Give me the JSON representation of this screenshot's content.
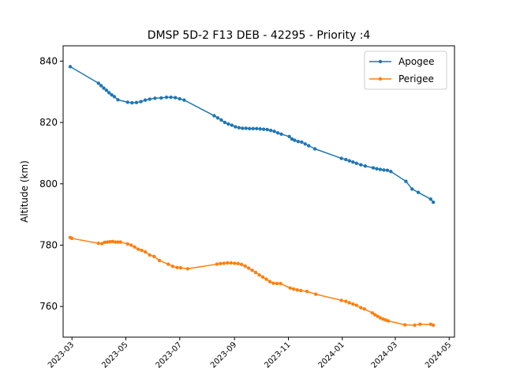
{
  "chart_data": {
    "type": "line",
    "title": "DMSP 5D-2 F13 DEB - 42295 - Priority :4",
    "xlabel": "",
    "ylabel": "Altitude (km)",
    "x_type": "date",
    "xlim": [
      "2023-02-19",
      "2024-05-07"
    ],
    "ylim": [
      750,
      845
    ],
    "xticks": [
      "2023-03",
      "2023-05",
      "2023-07",
      "2023-09",
      "2023-11",
      "2024-01",
      "2024-03",
      "2024-05"
    ],
    "yticks": [
      760,
      780,
      800,
      820,
      840
    ],
    "legend": {
      "position": "upper right"
    },
    "grid": false,
    "series": [
      {
        "name": "Apogee",
        "color": "#1f77b4",
        "marker": "circle",
        "points": [
          [
            "2023-02-27",
            838.2
          ],
          [
            "2023-03-31",
            832.8
          ],
          [
            "2023-04-03",
            832.0
          ],
          [
            "2023-04-06",
            831.2
          ],
          [
            "2023-04-09",
            830.5
          ],
          [
            "2023-04-12",
            829.7
          ],
          [
            "2023-04-15",
            829.0
          ],
          [
            "2023-04-18",
            828.4
          ],
          [
            "2023-04-22",
            827.4
          ],
          [
            "2023-05-03",
            826.6
          ],
          [
            "2023-05-08",
            826.4
          ],
          [
            "2023-05-13",
            826.5
          ],
          [
            "2023-05-18",
            826.8
          ],
          [
            "2023-05-23",
            827.3
          ],
          [
            "2023-05-28",
            827.6
          ],
          [
            "2023-06-03",
            827.9
          ],
          [
            "2023-06-10",
            828.0
          ],
          [
            "2023-06-16",
            828.2
          ],
          [
            "2023-06-21",
            828.2
          ],
          [
            "2023-06-26",
            828.1
          ],
          [
            "2023-07-01",
            827.7
          ],
          [
            "2023-07-06",
            827.3
          ],
          [
            "2023-08-09",
            822.2
          ],
          [
            "2023-08-13",
            821.5
          ],
          [
            "2023-08-17",
            820.8
          ],
          [
            "2023-08-21",
            820.0
          ],
          [
            "2023-08-25",
            819.5
          ],
          [
            "2023-08-29",
            819.1
          ],
          [
            "2023-09-02",
            818.6
          ],
          [
            "2023-09-06",
            818.3
          ],
          [
            "2023-09-10",
            818.1
          ],
          [
            "2023-09-14",
            818.1
          ],
          [
            "2023-09-18",
            818.0
          ],
          [
            "2023-09-22",
            818.0
          ],
          [
            "2023-09-26",
            818.0
          ],
          [
            "2023-09-30",
            817.9
          ],
          [
            "2023-10-04",
            817.8
          ],
          [
            "2023-10-08",
            817.7
          ],
          [
            "2023-10-12",
            817.4
          ],
          [
            "2023-10-16",
            817.1
          ],
          [
            "2023-10-20",
            816.6
          ],
          [
            "2023-10-24",
            816.2
          ],
          [
            "2023-11-02",
            815.4
          ],
          [
            "2023-11-05",
            814.6
          ],
          [
            "2023-11-08",
            814.2
          ],
          [
            "2023-11-12",
            813.8
          ],
          [
            "2023-11-16",
            813.6
          ],
          [
            "2023-11-20",
            813.0
          ],
          [
            "2023-11-24",
            812.4
          ],
          [
            "2023-12-01",
            811.4
          ],
          [
            "2023-12-31",
            808.3
          ],
          [
            "2024-01-05",
            807.9
          ],
          [
            "2024-01-09",
            807.5
          ],
          [
            "2024-01-13",
            807.1
          ],
          [
            "2024-01-17",
            806.7
          ],
          [
            "2024-01-22",
            806.2
          ],
          [
            "2024-01-27",
            805.8
          ],
          [
            "2024-02-05",
            805.2
          ],
          [
            "2024-02-09",
            804.9
          ],
          [
            "2024-02-13",
            804.7
          ],
          [
            "2024-02-17",
            804.5
          ],
          [
            "2024-02-21",
            804.4
          ],
          [
            "2024-02-25",
            804.0
          ],
          [
            "2024-03-13",
            800.8
          ],
          [
            "2024-03-20",
            798.3
          ],
          [
            "2024-03-27",
            797.2
          ],
          [
            "2024-04-10",
            795.0
          ],
          [
            "2024-04-13",
            794.0
          ]
        ]
      },
      {
        "name": "Perigee",
        "color": "#ff7f0e",
        "marker": "circle",
        "points": [
          [
            "2023-02-27",
            782.5
          ],
          [
            "2023-03-01",
            782.2
          ],
          [
            "2023-03-31",
            780.6
          ],
          [
            "2023-04-04",
            780.5
          ],
          [
            "2023-04-07",
            780.9
          ],
          [
            "2023-04-10",
            781.0
          ],
          [
            "2023-04-13",
            781.1
          ],
          [
            "2023-04-16",
            781.2
          ],
          [
            "2023-04-19",
            781.0
          ],
          [
            "2023-04-22",
            781.0
          ],
          [
            "2023-04-25",
            781.0
          ],
          [
            "2023-05-03",
            780.4
          ],
          [
            "2023-05-07",
            780.0
          ],
          [
            "2023-05-11",
            779.4
          ],
          [
            "2023-05-15",
            778.7
          ],
          [
            "2023-05-19",
            778.3
          ],
          [
            "2023-05-23",
            777.8
          ],
          [
            "2023-05-28",
            776.8
          ],
          [
            "2023-06-02",
            776.3
          ],
          [
            "2023-06-08",
            775.0
          ],
          [
            "2023-06-18",
            773.8
          ],
          [
            "2023-06-23",
            773.1
          ],
          [
            "2023-06-28",
            772.7
          ],
          [
            "2023-07-02",
            772.6
          ],
          [
            "2023-07-10",
            772.3
          ],
          [
            "2023-08-12",
            773.8
          ],
          [
            "2023-08-16",
            774.0
          ],
          [
            "2023-08-20",
            774.1
          ],
          [
            "2023-08-24",
            774.2
          ],
          [
            "2023-08-28",
            774.2
          ],
          [
            "2023-09-01",
            774.1
          ],
          [
            "2023-09-05",
            774.0
          ],
          [
            "2023-09-09",
            773.7
          ],
          [
            "2023-09-13",
            773.2
          ],
          [
            "2023-09-17",
            772.5
          ],
          [
            "2023-09-21",
            771.8
          ],
          [
            "2023-09-25",
            771.1
          ],
          [
            "2023-09-29",
            770.3
          ],
          [
            "2023-10-03",
            769.6
          ],
          [
            "2023-10-07",
            768.9
          ],
          [
            "2023-10-11",
            768.1
          ],
          [
            "2023-10-15",
            767.6
          ],
          [
            "2023-10-19",
            767.5
          ],
          [
            "2023-10-23",
            767.5
          ],
          [
            "2023-11-03",
            766.0
          ],
          [
            "2023-11-07",
            765.7
          ],
          [
            "2023-11-11",
            765.4
          ],
          [
            "2023-11-15",
            765.2
          ],
          [
            "2023-11-22",
            764.9
          ],
          [
            "2023-12-02",
            764.0
          ],
          [
            "2023-12-31",
            762.0
          ],
          [
            "2024-01-05",
            761.7
          ],
          [
            "2024-01-09",
            761.2
          ],
          [
            "2024-01-13",
            760.8
          ],
          [
            "2024-01-17",
            760.4
          ],
          [
            "2024-01-22",
            759.6
          ],
          [
            "2024-01-26",
            759.2
          ],
          [
            "2024-02-04",
            757.9
          ],
          [
            "2024-02-07",
            757.3
          ],
          [
            "2024-02-10",
            756.8
          ],
          [
            "2024-02-13",
            756.3
          ],
          [
            "2024-02-16",
            755.9
          ],
          [
            "2024-02-19",
            755.6
          ],
          [
            "2024-02-22",
            755.3
          ],
          [
            "2024-03-12",
            754.0
          ],
          [
            "2024-03-23",
            753.9
          ],
          [
            "2024-03-29",
            754.2
          ],
          [
            "2024-04-10",
            754.2
          ],
          [
            "2024-04-13",
            753.9
          ]
        ]
      }
    ]
  }
}
